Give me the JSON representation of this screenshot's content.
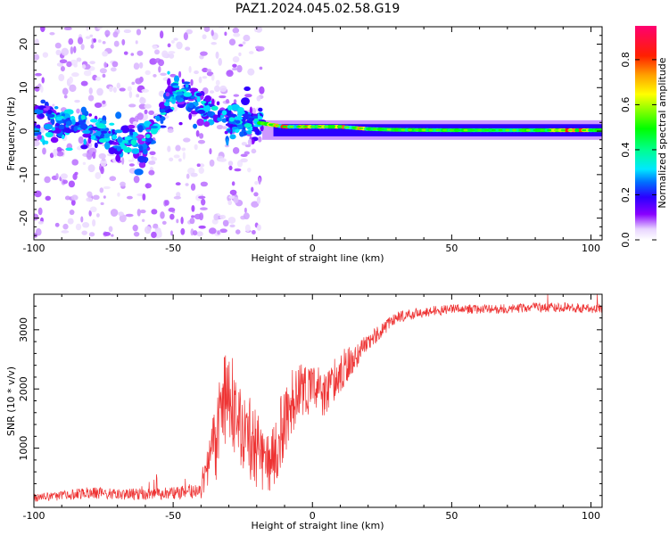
{
  "title": "PAZ1.2024.045.02.58.G19",
  "chart_data": [
    {
      "type": "heatmap",
      "xlabel": "Height of straight line (km)",
      "ylabel": "Frequency (Hz)",
      "xlim": [
        -100,
        104
      ],
      "ylim": [
        -25,
        24
      ],
      "x_ticks": [
        -100,
        -50,
        0,
        50,
        100
      ],
      "x_tick_labels": [
        "-100",
        "-50",
        "0",
        "50",
        "100"
      ],
      "y_ticks": [
        -20,
        -10,
        0,
        10,
        20
      ],
      "y_tick_labels": [
        "-20",
        "-10",
        "0",
        "10",
        "20"
      ],
      "colorbar": {
        "label": "Normalized spectral amplitude",
        "range": [
          0,
          0.95
        ],
        "ticks": [
          0.0,
          0.2,
          0.4,
          0.6,
          0.8
        ],
        "tick_labels": [
          "0.0",
          "0.2",
          "0.4",
          "0.6",
          "0.8"
        ],
        "colormap": "gist_ncar_reversed"
      },
      "ridge": {
        "description_points_x": [
          -100,
          -90,
          -80,
          -70,
          -60,
          -50,
          -40,
          -30,
          -20,
          -10,
          0,
          10,
          20,
          30,
          50,
          80,
          104
        ],
        "frequency_y": [
          3,
          2,
          1,
          -2,
          -3,
          9,
          6,
          3,
          2,
          1,
          1,
          1,
          0.5,
          0.3,
          0.2,
          0.2,
          0.2
        ]
      }
    },
    {
      "type": "line",
      "xlabel": "Height of straight line (km)",
      "ylabel": "SNR (10 * v/v)",
      "xlim": [
        -100,
        104
      ],
      "ylim": [
        0,
        3600
      ],
      "x_ticks": [
        -100,
        -50,
        0,
        50,
        100
      ],
      "x_tick_labels": [
        "-100",
        "-50",
        "0",
        "50",
        "100"
      ],
      "y_ticks": [
        1000,
        2000,
        3000
      ],
      "y_tick_labels": [
        "1000",
        "2000",
        "3000"
      ],
      "line_color": "#ee3333",
      "envelope_x": [
        -100,
        -80,
        -60,
        -40,
        -37,
        -33,
        -30,
        -25,
        -20,
        -15,
        -10,
        -5,
        0,
        5,
        10,
        15,
        20,
        25,
        30,
        40,
        50,
        60,
        70,
        80,
        90,
        104
      ],
      "envelope_y": [
        150,
        250,
        200,
        250,
        700,
        1500,
        1900,
        1300,
        1000,
        700,
        1500,
        2000,
        2000,
        1900,
        2300,
        2500,
        2800,
        3000,
        3200,
        3300,
        3350,
        3350,
        3350,
        3380,
        3380,
        3350
      ],
      "noise_amplitude": [
        80,
        120,
        120,
        150,
        500,
        900,
        800,
        700,
        700,
        500,
        700,
        500,
        450,
        400,
        350,
        250,
        150,
        120,
        100,
        90,
        80,
        80,
        80,
        80,
        80,
        80
      ]
    }
  ]
}
